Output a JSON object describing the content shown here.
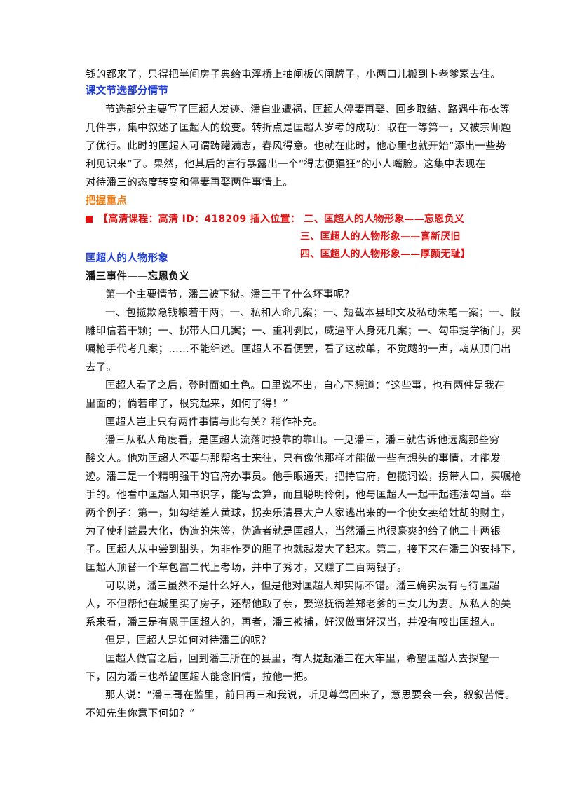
{
  "intro": {
    "line1": "钱的都来了，只得把半间房子典给屯浮桥上抽闸板的闸牌子，小两口儿搬到卜老爹家去住。"
  },
  "section1": {
    "heading": "课文节选部分情节",
    "lines": [
      "节选部分主要写了匡超人发迹、潘自业遭祸，匡超人停妻再娶、回乡取结、路遇牛布衣等",
      "几件事，集中叙述了匡超人的蜕变。转折点是匡超人岁考的成功：取在一等第一，又被宗师题",
      "了优行。此时的匡超人可谓踌躇满志，春风得意。也就在此时，他心里也就开始“添出一些势",
      "利见识来”了。果然，他其后的言行暴露出一个“得志便猖狂”的小人嘴脸。这集中表现在",
      "对待潘三的态度转变和停妻再娶两件事情上。"
    ]
  },
  "section2": {
    "heading": "把握重点",
    "course_line1": "【高清课程：高清 ID：418209  插入位置：      二、匡超人的人物形象——忘恩负义",
    "course_line2": "三、匡超人的人物形象——喜新厌旧",
    "course_line3": "四、匡超人的人物形象——厚颜无耻】"
  },
  "section3": {
    "heading": "匡超人的人物形象",
    "subheading": "潘三事件——忘恩负义",
    "lines": [
      "第一个主要情节，潘三被下狱。潘三干了什么坏事呢？",
      "一、包揽欺隐钱粮若干两；一、私和人命几案；一、短截本县印文及私动朱笔一案；一、假",
      "雕印信若干颗；一、拐带人口几案；一、重利剥民，威逼平人身死几案；一、勾串提学衙门，买",
      "嘱枪手代考几案；……不能细述。匡超人不看便罢，看了这款单，不觉飕的一声，魂从顶门出",
      "去了。",
      "匡超人看了之后，登时面如土色。口里说不出，自心下想道：“这些事，也有两件是我在",
      "里面的；倘若审了，根究起来，如何了得！”",
      "匡超人岂止只有两件事情与此有关？稍作补充。",
      "潘三从私人角度看，是匡超人流落时投靠的靠山。一见潘三，潘三就告诉他远离那些穷",
      "酸文人。他劝匡超人不要与那帮名士来往，只有像他那样才能做一些有想头的事情，才能发",
      "迹。潘三是一个精明强干的官府办事员。他手眼通天，把持官府，包揽词讼，拐带人口，买嘱枪",
      "手的。他看中匡超人知书识字，能写会算，而且聪明伶俐，他与匡超人一起干起违法勾当。举",
      "两个例子：第一，如勾结差人黄球，拐卖乐清县大户人家逃出来的一个使女卖给姓胡的财主，",
      "为了使利益最大化，伪造的朱签，伪造者就是匡超人，当然潘三也很豪爽的给了他二十两银",
      "子。匡超人从中尝到甜头，为非作歹的胆子也就越发大了起来。第二，接下来在潘三的安排下，",
      "匡超人顶替一个草包富二代上考场，并中了秀才，又赚了二百两银子。",
      "可以说，潘三虽然不是什么好人，但是他对匡超人却实际不错。潘三确实没有亏待匡超",
      "人，不但帮他在城里买了房子，还帮他取了亲，娶巡抚衙差郑老爹的三女儿为妻。从私人的关",
      "系来看，潘三是有恩于匡超人的，再者，潘三被捕，好汉做事好汉当，并没有咬出匡超人。",
      "但是，匡超人是如何对待潘三的呢？",
      "匡超人做官之后，回到潘三所在的县里，有人提起潘三在大牢里，希望匡超人去探望一",
      "下，因为潘三也希望匡超人能念旧情，拉他一把。",
      "那人说：“潘三哥在监里，前日再三和我说，听见尊驾回来了，意思要会一会，叙叙苦情。",
      "不知先生你意下何如？”"
    ]
  }
}
